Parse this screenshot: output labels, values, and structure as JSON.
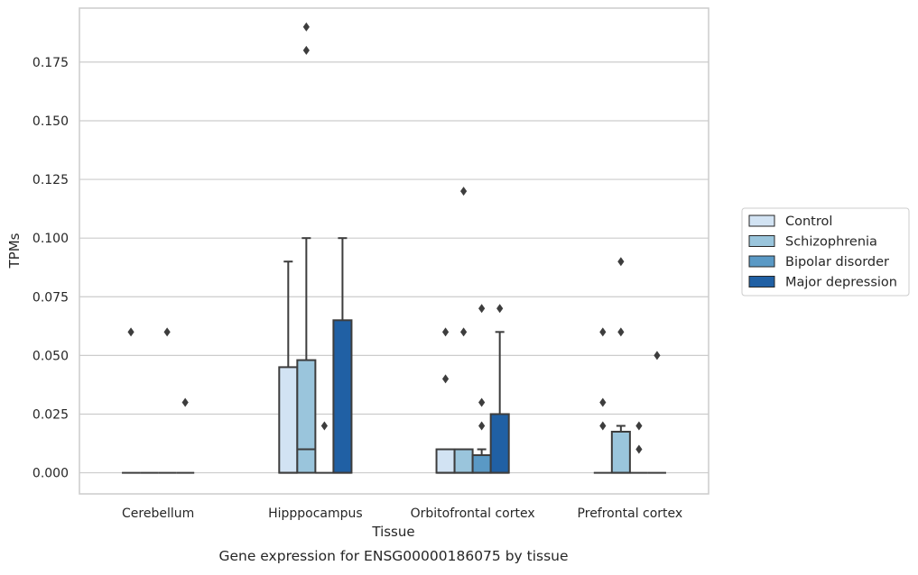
{
  "chart_data": {
    "type": "box",
    "xlabel": "Tissue",
    "ylabel": "TPMs",
    "caption": "Gene expression for ENSG00000186075 by tissue",
    "categories": [
      "Cerebellum",
      "Hipppocampus",
      "Orbitofrontal cortex",
      "Prefrontal cortex"
    ],
    "ylim": [
      -0.009,
      0.198
    ],
    "yticks": [
      0.0,
      0.025,
      0.05,
      0.075,
      0.1,
      0.125,
      0.15,
      0.175
    ],
    "ytick_labels": [
      "0.000",
      "0.025",
      "0.050",
      "0.075",
      "0.100",
      "0.125",
      "0.150",
      "0.175"
    ],
    "grid": "horizontal",
    "legend_position": "right",
    "series": [
      {
        "name": "Control",
        "color": "#d2e3f3",
        "boxes": [
          {
            "q1": 0,
            "median": 0,
            "q3": 0,
            "whisker_low": 0,
            "whisker_high": 0,
            "outliers": [
              0.06
            ]
          },
          {
            "q1": 0,
            "median": 0,
            "q3": 0.045,
            "whisker_low": 0,
            "whisker_high": 0.09,
            "outliers": []
          },
          {
            "q1": 0,
            "median": 0,
            "q3": 0.01,
            "whisker_low": 0,
            "whisker_high": 0.01,
            "outliers": [
              0.04,
              0.06
            ]
          },
          {
            "q1": 0,
            "median": 0,
            "q3": 0,
            "whisker_low": 0,
            "whisker_high": 0,
            "outliers": [
              0.02,
              0.03,
              0.06
            ]
          }
        ]
      },
      {
        "name": "Schizophrenia",
        "color": "#9ac5dc",
        "boxes": [
          {
            "q1": 0,
            "median": 0,
            "q3": 0,
            "whisker_low": 0,
            "whisker_high": 0,
            "outliers": []
          },
          {
            "q1": 0,
            "median": 0.01,
            "q3": 0.048,
            "whisker_low": 0,
            "whisker_high": 0.1,
            "outliers": [
              0.18,
              0.19
            ]
          },
          {
            "q1": 0,
            "median": 0,
            "q3": 0.01,
            "whisker_low": 0,
            "whisker_high": 0.01,
            "outliers": [
              0.06,
              0.12
            ]
          },
          {
            "q1": 0,
            "median": 0,
            "q3": 0.0175,
            "whisker_low": 0,
            "whisker_high": 0.02,
            "outliers": [
              0.06,
              0.09
            ]
          }
        ]
      },
      {
        "name": "Bipolar disorder",
        "color": "#5a99c5",
        "boxes": [
          {
            "q1": 0,
            "median": 0,
            "q3": 0,
            "whisker_low": 0,
            "whisker_high": 0,
            "outliers": [
              0.06
            ]
          },
          {
            "q1": 0,
            "median": 0,
            "q3": 0,
            "whisker_low": 0,
            "whisker_high": 0,
            "outliers": [
              0.02
            ]
          },
          {
            "q1": 0,
            "median": 0,
            "q3": 0.0075,
            "whisker_low": 0,
            "whisker_high": 0.01,
            "outliers": [
              0.02,
              0.03,
              0.07
            ]
          },
          {
            "q1": 0,
            "median": 0,
            "q3": 0,
            "whisker_low": 0,
            "whisker_high": 0,
            "outliers": [
              0.01,
              0.02
            ]
          }
        ]
      },
      {
        "name": "Major depression",
        "color": "#2060a4",
        "boxes": [
          {
            "q1": 0,
            "median": 0,
            "q3": 0,
            "whisker_low": 0,
            "whisker_high": 0,
            "outliers": [
              0.03
            ]
          },
          {
            "q1": 0,
            "median": 0,
            "q3": 0.065,
            "whisker_low": 0,
            "whisker_high": 0.1,
            "outliers": []
          },
          {
            "q1": 0,
            "median": 0,
            "q3": 0.025,
            "whisker_low": 0,
            "whisker_high": 0.06,
            "outliers": [
              0.07
            ]
          },
          {
            "q1": 0,
            "median": 0,
            "q3": 0,
            "whisker_low": 0,
            "whisker_high": 0,
            "outliers": [
              0.05
            ]
          }
        ]
      }
    ]
  }
}
